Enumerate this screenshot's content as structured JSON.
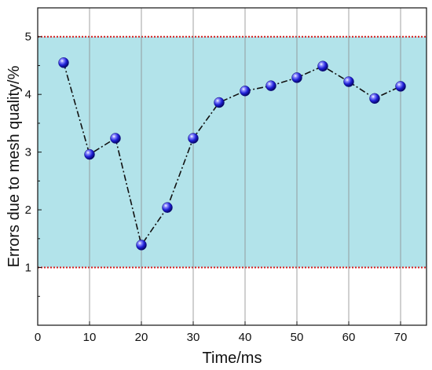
{
  "chart_data": {
    "type": "line",
    "title": "",
    "xlabel": "Time/ms",
    "ylabel": "Errors due to mesh quality/%",
    "xlim": [
      0,
      75
    ],
    "ylim": [
      0,
      5.5
    ],
    "x_ticks": [
      0,
      10,
      20,
      30,
      40,
      50,
      60,
      70
    ],
    "y_ticks": [
      1,
      2,
      3,
      4,
      5
    ],
    "grid": "vertical",
    "band": {
      "from": 1,
      "to": 5,
      "color": "#b2e3ea",
      "limit_line_color": "#d81e1e"
    },
    "series": [
      {
        "line_style": "dash-dot",
        "line_color": "#111111",
        "marker": "blue-sphere",
        "marker_color": "#1f1fd6",
        "x": [
          5,
          10,
          15,
          20,
          25,
          30,
          35,
          40,
          45,
          50,
          55,
          60,
          65,
          70
        ],
        "y": [
          4.55,
          2.96,
          3.24,
          1.39,
          2.04,
          3.24,
          3.86,
          4.06,
          4.15,
          4.29,
          4.49,
          4.22,
          3.93,
          4.14
        ]
      }
    ]
  }
}
